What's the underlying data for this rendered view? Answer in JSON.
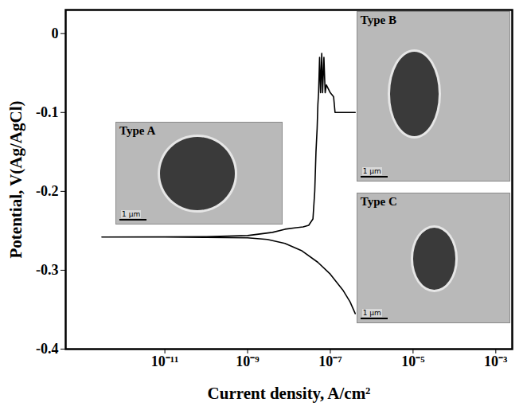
{
  "chart_data": {
    "type": "line",
    "x_label": "Current density, A/cm²",
    "y_label": "Potential, V(Ag/AgCl)",
    "log": "x",
    "xlim": [
      4e-14,
      0.0025
    ],
    "ylim": [
      -0.4,
      0.03
    ],
    "xticks": [
      {
        "value": 1e-11,
        "label": "10⁻¹¹"
      },
      {
        "value": 1e-09,
        "label": "10⁻⁹"
      },
      {
        "value": 1e-07,
        "label": "10⁻⁷"
      },
      {
        "value": 1e-05,
        "label": "10⁻⁵"
      },
      {
        "value": 0.001,
        "label": "10⁻³"
      }
    ],
    "yticks": [
      -0.4,
      -0.3,
      -0.2,
      -0.1,
      0
    ],
    "color": "#000000",
    "x": [
      4e-07,
      3e-07,
      2e-07,
      1e-07,
      5e-08,
      2e-08,
      8e-09,
      3e-09,
      1e-09,
      1e-10,
      1e-11,
      3e-13,
      1e-11,
      1e-10,
      1e-09,
      4e-09,
      8e-09,
      1.5e-08,
      2.2e-08,
      3e-08,
      3.8e-08,
      4.2e-08,
      4.5e-08,
      4.8e-08,
      5e-08,
      5.2e-08,
      5.5e-08,
      5.8e-08,
      6.2e-08,
      6.5e-08,
      7e-08,
      7.5e-08,
      8e-08,
      1e-07,
      1.2e-07,
      1.3e-07,
      4e-07
    ],
    "values": [
      -0.355,
      -0.34,
      -0.325,
      -0.305,
      -0.29,
      -0.275,
      -0.266,
      -0.261,
      -0.259,
      -0.2585,
      -0.258,
      -0.258,
      -0.2578,
      -0.2575,
      -0.256,
      -0.252,
      -0.248,
      -0.246,
      -0.245,
      -0.243,
      -0.235,
      -0.2,
      -0.15,
      -0.12,
      -0.09,
      -0.075,
      -0.03,
      -0.075,
      -0.025,
      -0.075,
      -0.03,
      -0.075,
      -0.065,
      -0.075,
      -0.08,
      -0.1,
      -0.1
    ],
    "insets": [
      {
        "label": "Type A",
        "scale_bar": "1 μm"
      },
      {
        "label": "Type B",
        "scale_bar": "1 μm"
      },
      {
        "label": "Type C",
        "scale_bar": "1 μm"
      }
    ]
  }
}
